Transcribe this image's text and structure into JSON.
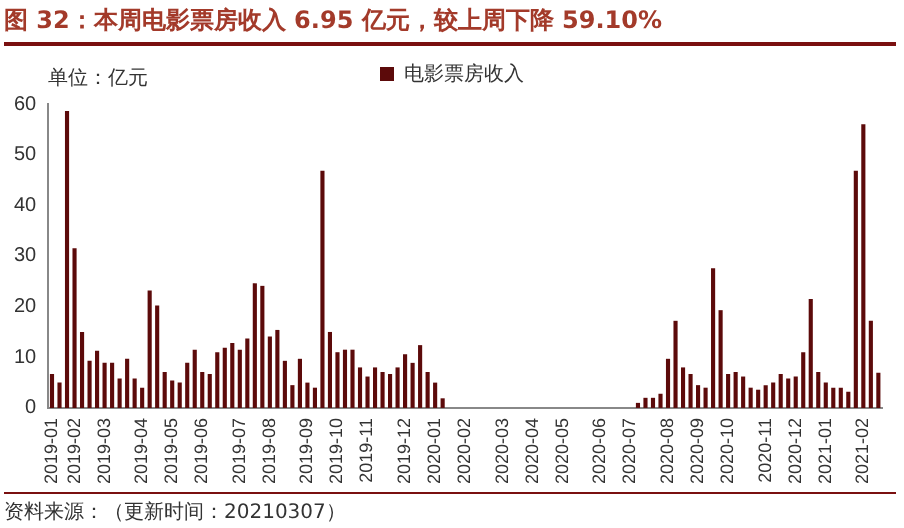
{
  "chart_data": {
    "type": "bar",
    "title": "图 32：本周电影票房收入 6.95 亿元，较上周下降 59.10%",
    "annotations": [
      "单位：亿元",
      "资料来源：（更新时间：20210307）"
    ],
    "categories": [
      "2019-01",
      null,
      null,
      "2019-02",
      null,
      null,
      null,
      "2019-03",
      null,
      null,
      null,
      null,
      "2019-04",
      null,
      null,
      null,
      "2019-05",
      null,
      null,
      null,
      "2019-06",
      null,
      null,
      null,
      null,
      "2019-07",
      null,
      null,
      null,
      "2019-08",
      null,
      null,
      null,
      null,
      "2019-09",
      null,
      null,
      null,
      "2019-10",
      null,
      null,
      null,
      "2019-11",
      null,
      null,
      null,
      null,
      "2019-12",
      null,
      null,
      null,
      "2020-01",
      null,
      null,
      null,
      "2020-02",
      null,
      null,
      null,
      null,
      "2020-03",
      null,
      null,
      null,
      "2020-04",
      null,
      null,
      null,
      "2020-05",
      null,
      null,
      null,
      null,
      "2020-06",
      null,
      null,
      null,
      "2020-07",
      null,
      null,
      null,
      null,
      "2020-08",
      null,
      null,
      null,
      "2020-09",
      null,
      null,
      null,
      "2020-10",
      null,
      null,
      null,
      null,
      "2020-11",
      null,
      null,
      null,
      "2020-12",
      null,
      null,
      null,
      "2021-01",
      null,
      null,
      null,
      null,
      "2021-02",
      null,
      null
    ],
    "series": [
      {
        "name": "电影票房收入",
        "color": "#5c0a0a",
        "values": [
          6.7,
          5,
          58.6,
          31.5,
          15,
          9.3,
          11.3,
          8.9,
          8.9,
          5.8,
          9.7,
          5.8,
          4,
          23.2,
          20.2,
          7.1,
          5.4,
          5,
          8.9,
          11.5,
          7.1,
          6.7,
          11,
          11.9,
          12.8,
          11.5,
          13.7,
          24.6,
          24.1,
          14.1,
          15.4,
          9.3,
          4.5,
          9.7,
          5,
          4,
          46.8,
          15,
          11,
          11.5,
          11.5,
          8,
          6.2,
          8,
          7.1,
          6.7,
          8,
          10.6,
          8.9,
          12.4,
          7.1,
          5,
          1.9,
          0,
          0,
          0,
          0,
          0,
          0,
          0,
          0,
          0,
          0,
          0,
          0,
          0,
          0,
          0,
          0,
          0,
          0,
          0,
          0,
          0,
          0,
          0,
          0,
          0,
          1,
          2,
          2,
          2.8,
          9.7,
          17.2,
          8,
          6.7,
          4.5,
          4,
          27.6,
          19.3,
          6.7,
          7.1,
          6.2,
          4,
          3.6,
          4.5,
          5,
          6.7,
          5.8,
          6.2,
          11,
          21.5,
          7.1,
          5,
          4,
          4,
          3.2,
          46.8,
          56,
          17.2,
          6.95
        ]
      }
    ],
    "ylim": [
      0,
      60
    ],
    "yticks": [
      0,
      10,
      20,
      30,
      40,
      50,
      60
    ],
    "grid": false,
    "legend": "top"
  }
}
